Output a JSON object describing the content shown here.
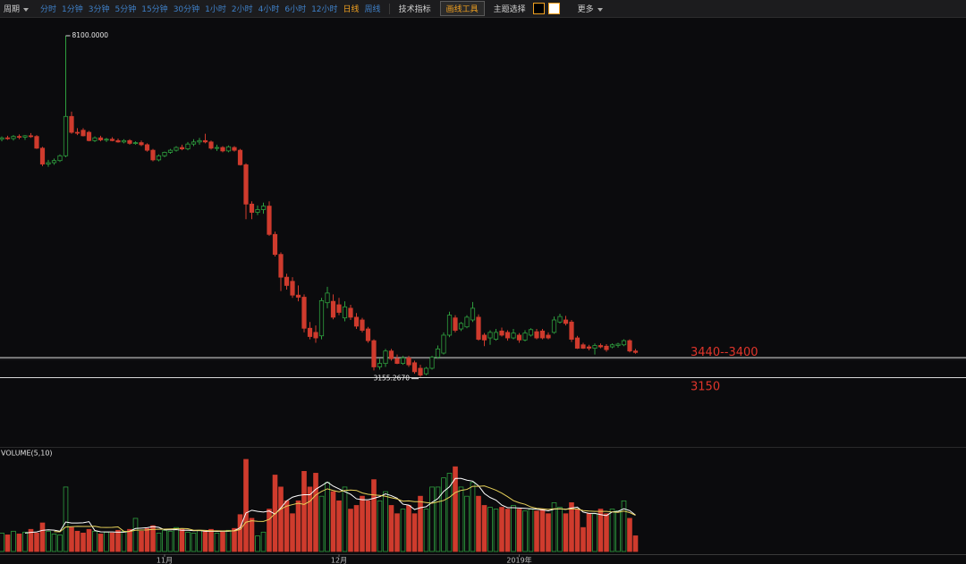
{
  "toolbar": {
    "period": "周期",
    "intervals": [
      "分时",
      "1分钟",
      "3分钟",
      "5分钟",
      "15分钟",
      "30分钟",
      "1小时",
      "2小时",
      "4小时",
      "6小时",
      "12小时",
      "日线",
      "周线"
    ],
    "active": 11,
    "indicators": "技术指标",
    "drawing_tool": "画线工具",
    "theme": "主题选择",
    "theme_colors": [
      "#000000",
      "#ffffff"
    ],
    "more": "更多"
  },
  "chart_data": [
    {
      "type": "candlestick",
      "categories": [
        null,
        null,
        null,
        null,
        null,
        null,
        null,
        null,
        null,
        null,
        null,
        null,
        null,
        null,
        null,
        null,
        null,
        null,
        null,
        null,
        null,
        null,
        null,
        null,
        null,
        null,
        null,
        null,
        "11月",
        null,
        null,
        null,
        null,
        null,
        null,
        null,
        null,
        null,
        null,
        null,
        null,
        null,
        null,
        null,
        null,
        null,
        null,
        null,
        null,
        null,
        null,
        null,
        null,
        null,
        null,
        null,
        null,
        null,
        "12月",
        null,
        null,
        null,
        null,
        null,
        null,
        null,
        null,
        null,
        null,
        null,
        null,
        null,
        null,
        null,
        null,
        null,
        null,
        null,
        null,
        null,
        null,
        null,
        null,
        null,
        null,
        null,
        null,
        null,
        null,
        "2019年",
        null,
        null,
        null,
        null,
        null,
        null,
        null,
        null,
        null,
        null,
        null,
        null,
        null,
        null,
        null,
        null,
        null,
        null,
        null,
        null
      ],
      "open": [
        6600,
        6620,
        6610,
        6640,
        6630,
        6650,
        6640,
        6470,
        6240,
        6260,
        6290,
        6360,
        6930,
        6700,
        6730,
        6700,
        6580,
        6620,
        6590,
        6600,
        6580,
        6560,
        6580,
        6540,
        6550,
        6520,
        6440,
        6300,
        6360,
        6410,
        6440,
        6480,
        6460,
        6530,
        6560,
        6580,
        6560,
        6470,
        6480,
        6430,
        6480,
        6440,
        6230,
        5660,
        5540,
        5580,
        5630,
        5220,
        4930,
        4600,
        4540,
        4340,
        4310,
        3860,
        3800,
        3750,
        4230,
        4250,
        4200,
        4010,
        4150,
        4020,
        3980,
        3850,
        3680,
        3300,
        3350,
        3530,
        3420,
        3350,
        3430,
        3360,
        3280,
        3200,
        3280,
        3440,
        3500,
        3760,
        4010,
        3850,
        3880,
        3980,
        4020,
        3760,
        3720,
        3700,
        3820,
        3800,
        3720,
        3760,
        3690,
        3760,
        3810,
        3820,
        3760,
        3800,
        3950,
        3980,
        3950,
        3720,
        3620,
        3590,
        3570,
        3610,
        3600,
        3590,
        3610,
        3620,
        3680,
        3530
      ],
      "high": [
        6640,
        6650,
        6660,
        6670,
        6660,
        6690,
        6660,
        6490,
        6300,
        6320,
        6380,
        8100,
        7000,
        6760,
        6760,
        6720,
        6640,
        6650,
        6620,
        6630,
        6610,
        6600,
        6600,
        6570,
        6580,
        6540,
        6460,
        6380,
        6420,
        6460,
        6500,
        6520,
        6560,
        6600,
        6620,
        6680,
        6580,
        6520,
        6500,
        6510,
        6500,
        6460,
        6250,
        5700,
        5640,
        5680,
        5700,
        5260,
        4960,
        4650,
        4600,
        4480,
        4350,
        3950,
        3900,
        4300,
        4460,
        4350,
        4300,
        4250,
        4200,
        4080,
        4010,
        3880,
        3700,
        3420,
        3560,
        3560,
        3480,
        3460,
        3460,
        3390,
        3330,
        3300,
        3460,
        3610,
        3800,
        4100,
        4050,
        3950,
        4050,
        4240,
        4060,
        3790,
        3830,
        3850,
        3870,
        3830,
        3850,
        3790,
        3830,
        3860,
        3850,
        3850,
        3800,
        4030,
        4070,
        4040,
        3980,
        3750,
        3650,
        3620,
        3640,
        3640,
        3630,
        3640,
        3650,
        3700,
        3700,
        3560
      ],
      "low": [
        6570,
        6590,
        6580,
        6600,
        6590,
        6620,
        6460,
        6210,
        6200,
        6230,
        6270,
        6340,
        6680,
        6660,
        6640,
        6570,
        6560,
        6570,
        6560,
        6570,
        6550,
        6540,
        6520,
        6520,
        6500,
        6420,
        6280,
        6280,
        6340,
        6390,
        6420,
        6440,
        6440,
        6500,
        6520,
        6540,
        6450,
        6430,
        6410,
        6410,
        6420,
        6220,
        5440,
        5440,
        5500,
        5520,
        5200,
        4900,
        4400,
        4420,
        4300,
        4250,
        3800,
        3700,
        3650,
        3700,
        4150,
        3990,
        4050,
        3960,
        3980,
        3850,
        3800,
        3650,
        3250,
        3260,
        3300,
        3390,
        3340,
        3330,
        3300,
        3200,
        3155.267,
        3180,
        3260,
        3420,
        3480,
        3730,
        3800,
        3820,
        3860,
        3950,
        3680,
        3600,
        3620,
        3680,
        3740,
        3680,
        3700,
        3650,
        3670,
        3740,
        3700,
        3700,
        3700,
        3780,
        3930,
        3900,
        3660,
        3560,
        3560,
        3540,
        3480,
        3570,
        3520,
        3570,
        3580,
        3600,
        3510,
        3490
      ],
      "close": [
        6620,
        6610,
        6640,
        6630,
        6650,
        6640,
        6470,
        6240,
        6260,
        6290,
        6360,
        6930,
        6700,
        6690,
        6650,
        6580,
        6620,
        6590,
        6600,
        6580,
        6560,
        6580,
        6540,
        6550,
        6520,
        6440,
        6300,
        6360,
        6410,
        6440,
        6480,
        6460,
        6530,
        6560,
        6580,
        6560,
        6470,
        6480,
        6430,
        6490,
        6440,
        6230,
        5660,
        5540,
        5580,
        5630,
        5220,
        4930,
        4600,
        4480,
        4340,
        4310,
        3860,
        3740,
        3720,
        4260,
        4370,
        4020,
        4090,
        4170,
        4020,
        3890,
        3830,
        3680,
        3300,
        3350,
        3530,
        3420,
        3350,
        3430,
        3330,
        3230,
        3180,
        3280,
        3440,
        3560,
        3760,
        4050,
        3830,
        3930,
        4020,
        4150,
        3700,
        3690,
        3800,
        3800,
        3760,
        3720,
        3790,
        3690,
        3790,
        3840,
        3720,
        3720,
        3720,
        3980,
        4030,
        3930,
        3700,
        3570,
        3570,
        3570,
        3610,
        3590,
        3550,
        3620,
        3630,
        3680,
        3530,
        3510
      ],
      "ylim": [
        2140,
        8333
      ],
      "up_color": "#2e9e3e",
      "down_color": "#cf3b2d",
      "annotations": [
        {
          "value": 8100,
          "label": "8100.0000"
        },
        {
          "value": 3155.267,
          "label": "3155.2670"
        }
      ],
      "hlines": [
        {
          "from": 3440,
          "to": 3400,
          "label": "3440--3400"
        },
        {
          "from": 3150,
          "to": 3150,
          "label": "3150"
        }
      ],
      "hline_color": "#d8d8d8",
      "hline_label_color": "#e0352b"
    },
    {
      "type": "volume",
      "title": "VOLUME(5,10)",
      "values": [
        20,
        18,
        22,
        19,
        21,
        24,
        20,
        31,
        22,
        19,
        18,
        70,
        26,
        22,
        20,
        24,
        22,
        19,
        21,
        20,
        23,
        22,
        24,
        36,
        22,
        25,
        28,
        20,
        23,
        22,
        26,
        24,
        21,
        20,
        23,
        22,
        24,
        20,
        21,
        23,
        25,
        40,
        100,
        36,
        17,
        21,
        46,
        83,
        70,
        55,
        41,
        55,
        87,
        70,
        85,
        60,
        75,
        65,
        55,
        70,
        46,
        50,
        60,
        55,
        78,
        55,
        65,
        50,
        41,
        46,
        50,
        41,
        60,
        46,
        70,
        70,
        80,
        85,
        92,
        70,
        60,
        75,
        60,
        50,
        48,
        46,
        48,
        46,
        50,
        46,
        44,
        46,
        44,
        46,
        41,
        53,
        48,
        41,
        53,
        46,
        26,
        41,
        41,
        46,
        41,
        46,
        44,
        55,
        36,
        17
      ],
      "ma5": [
        null,
        null,
        null,
        null,
        20,
        20.8,
        21.2,
        23,
        23.6,
        23.2,
        22,
        32,
        31,
        31,
        31.2,
        32.4,
        22.8,
        21.4,
        21.2,
        21.2,
        21,
        21,
        22,
        25,
        25.4,
        25.8,
        27,
        26.2,
        23.6,
        23.6,
        23.8,
        23,
        23.2,
        22.6,
        22.8,
        22,
        22,
        21.8,
        22,
        22,
        22.6,
        25.8,
        41.8,
        44.8,
        43.6,
        42.8,
        44,
        40.6,
        47.4,
        55,
        59,
        60.8,
        61.6,
        61.6,
        67.6,
        71.4,
        75.4,
        71,
        68,
        65,
        62.2,
        57.2,
        56.2,
        56.2,
        57.8,
        59.6,
        62.6,
        60.6,
        57.8,
        51.4,
        50.4,
        45.6,
        47.6,
        48.6,
        53.4,
        57.4,
        65.2,
        70.2,
        79.4,
        79.4,
        77.4,
        76.4,
        71.4,
        63,
        58.6,
        55.8,
        50.4,
        47.6,
        47.6,
        47.2,
        46.8,
        46.4,
        46,
        45.2,
        44.2,
        46,
        46.4,
        45.8,
        47.2,
        48.2,
        42.8,
        41.4,
        41.4,
        40,
        39,
        43,
        43.6,
        46.4,
        44.4,
        39.6
      ],
      "ma10": [
        null,
        null,
        null,
        null,
        null,
        null,
        null,
        null,
        null,
        21.6,
        21.4,
        26.6,
        27,
        27.3,
        27.2,
        27.2,
        27.4,
        26.2,
        26.1,
        26.2,
        26.7,
        21.9,
        21.7,
        23.1,
        23.3,
        23.4,
        24,
        24.1,
        24.3,
        24.5,
        24.8,
        25,
        24.7,
        23.1,
        23.2,
        22.9,
        22.5,
        22.5,
        22.3,
        22.4,
        22.3,
        23.9,
        31.8,
        33.4,
        32.8,
        32.7,
        34.9,
        41.2,
        46.1,
        49.3,
        50.9,
        52.4,
        51.1,
        54.5,
        61.3,
        65.2,
        68.1,
        66.3,
        64.8,
        66.3,
        66.8,
        66.3,
        63.6,
        62.1,
        61.4,
        60.9,
        59.9,
        58.4,
        57,
        54.6,
        55,
        54.1,
        54.1,
        53.2,
        52.4,
        53.9,
        55.4,
        58.9,
        64,
        66.4,
        67.4,
        70.8,
        70.8,
        71.2,
        69,
        66.6,
        63.4,
        59.5,
        55.3,
        52.9,
        51.3,
        48.4,
        46.8,
        46.4,
        45.7,
        46.4,
        46.4,
        45.9,
        46.2,
        46.2,
        44.4,
        43.9,
        43.6,
        43.6,
        43.6,
        42.9,
        42.5,
        43.9,
        42.2,
        39.3
      ],
      "ylim": [
        0,
        100
      ],
      "ma5_color": "#ffffff",
      "ma10_color": "#e8d25a"
    }
  ]
}
